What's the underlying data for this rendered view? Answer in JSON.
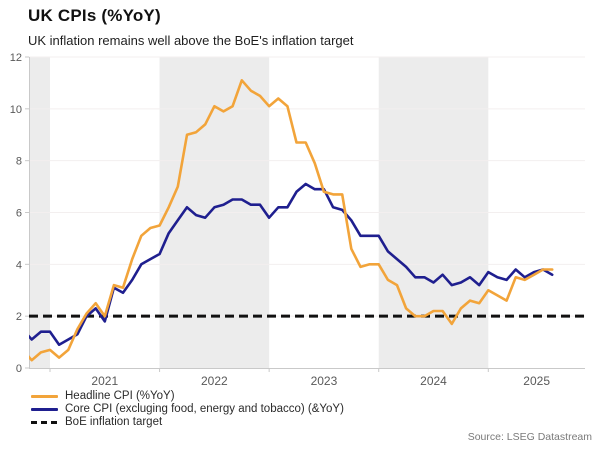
{
  "header": {
    "title": "UK CPIs (%YoY)",
    "subtitle": "UK inflation remains well above the BoE's inflation target"
  },
  "source": "Source: LSEG Datastream",
  "legend": [
    {
      "label": "Headline CPI (%YoY)",
      "color": "#F2A43A",
      "style": "solid"
    },
    {
      "label": "Core CPI (excluging food, energy and tobacco) (&YoY)",
      "color": "#1F1F8F",
      "style": "solid"
    },
    {
      "label": "BoE inflation target",
      "color": "#111111",
      "style": "dashed"
    }
  ],
  "chart_data": {
    "type": "line",
    "title": "UK CPIs (%YoY)",
    "subtitle": "UK inflation remains well above the BoE's inflation target",
    "frequency": "monthly",
    "x_start": "2020-10",
    "x_end": "2025-08",
    "x_tick_labels": [
      "2021",
      "2022",
      "2023",
      "2024",
      "2025"
    ],
    "ylim": [
      0,
      12
    ],
    "yticks": [
      0,
      2,
      4,
      6,
      8,
      10,
      12
    ],
    "grid": "faint horizontal",
    "legend_position": "bottom-left",
    "shaded_year_bands": [
      "2020-partial",
      "2022",
      "2024"
    ],
    "target_line_value": 2,
    "series": [
      {
        "name": "Headline CPI (%YoY)",
        "color": "#F2A43A",
        "values": [
          0.7,
          0.3,
          0.6,
          0.7,
          0.4,
          0.7,
          1.5,
          2.1,
          2.5,
          2.0,
          3.2,
          3.1,
          4.2,
          5.1,
          5.4,
          5.5,
          6.2,
          7.0,
          9.0,
          9.1,
          9.4,
          10.1,
          9.9,
          10.1,
          11.1,
          10.7,
          10.5,
          10.1,
          10.4,
          10.1,
          8.7,
          8.7,
          7.9,
          6.8,
          6.7,
          6.7,
          4.6,
          3.9,
          4.0,
          4.0,
          3.4,
          3.2,
          2.3,
          2.0,
          2.0,
          2.2,
          2.2,
          1.7,
          2.3,
          2.6,
          2.5,
          3.0,
          2.8,
          2.6,
          3.5,
          3.4,
          3.6,
          3.8,
          3.8
        ]
      },
      {
        "name": "Core CPI (excluging food, energy and tobacco) (&YoY)",
        "color": "#1F1F8F",
        "values": [
          1.5,
          1.1,
          1.4,
          1.4,
          0.9,
          1.1,
          1.3,
          2.0,
          2.3,
          1.8,
          3.1,
          2.9,
          3.4,
          4.0,
          4.2,
          4.4,
          5.2,
          5.7,
          6.2,
          5.9,
          5.8,
          6.2,
          6.3,
          6.5,
          6.5,
          6.3,
          6.3,
          5.8,
          6.2,
          6.2,
          6.8,
          7.1,
          6.9,
          6.9,
          6.2,
          6.1,
          5.7,
          5.1,
          5.1,
          5.1,
          4.5,
          4.2,
          3.9,
          3.5,
          3.5,
          3.3,
          3.6,
          3.2,
          3.3,
          3.5,
          3.2,
          3.7,
          3.5,
          3.4,
          3.8,
          3.5,
          3.7,
          3.8,
          3.6
        ]
      }
    ],
    "colors": {
      "headline": "#F2A43A",
      "core": "#1F1F8F",
      "target": "#111111",
      "band": "#ECECEC",
      "gridline": "#F3EFEF",
      "axis": "#C9C9C9",
      "tick_text": "#595959"
    }
  }
}
